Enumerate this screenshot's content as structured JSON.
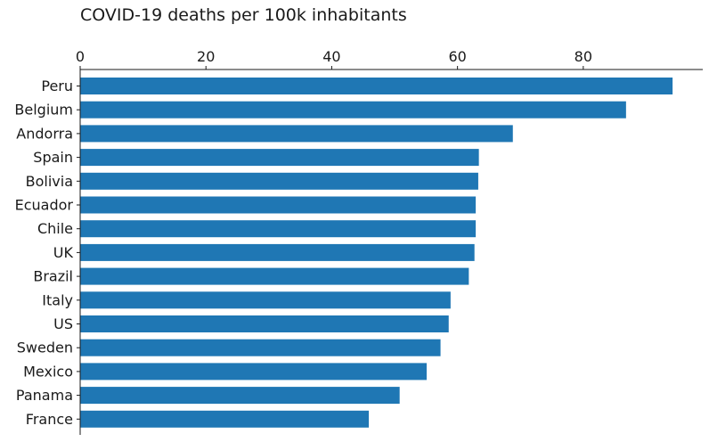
{
  "chart_data": {
    "type": "bar",
    "orientation": "horizontal",
    "title": "COVID-19 deaths per 100k inhabitants",
    "xlabel": "",
    "ylabel": "",
    "x_axis_position": "top",
    "xlim": [
      0,
      99
    ],
    "xticks": [
      0,
      20,
      40,
      60,
      80
    ],
    "grid": false,
    "bar_color": "#1f77b4",
    "categories": [
      "Peru",
      "Belgium",
      "Andorra",
      "Spain",
      "Bolivia",
      "Ecuador",
      "Chile",
      "UK",
      "Brazil",
      "Italy",
      "US",
      "Sweden",
      "Mexico",
      "Panama",
      "France"
    ],
    "values": [
      94.2,
      86.8,
      68.8,
      63.4,
      63.3,
      62.9,
      62.9,
      62.7,
      61.8,
      58.9,
      58.6,
      57.3,
      55.1,
      50.8,
      45.9
    ]
  }
}
